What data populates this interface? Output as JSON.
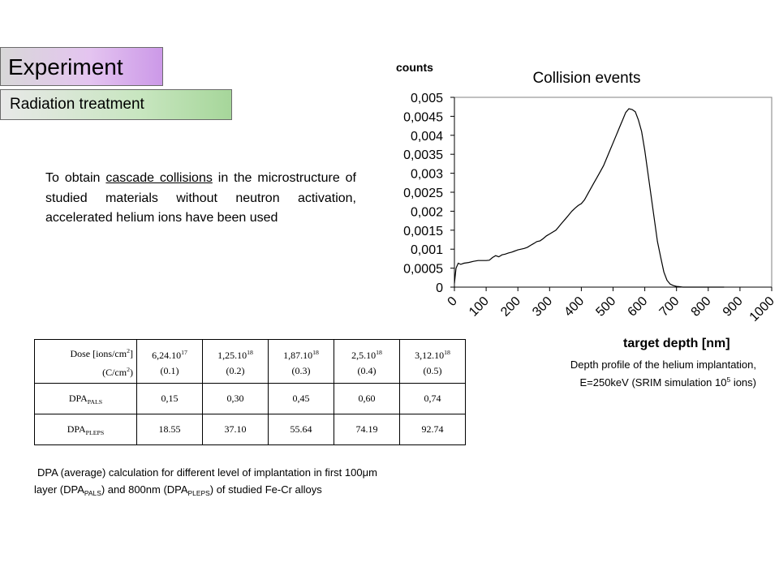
{
  "header": {
    "title": "Experiment",
    "subtitle": "Radiation treatment"
  },
  "intro": {
    "before": "To obtain ",
    "underlined": "cascade collisions",
    "after": " in the microstructure of studied materials without neutron activation, accelerated helium ions have been used"
  },
  "table": {
    "header_label_line1": "Dose [ions/cm",
    "header_label_sup1": "2",
    "header_label_line1_end": "]",
    "header_label_line2": "(C/cm",
    "header_label_sup2": "2",
    "header_label_line2_end": ")",
    "doses": [
      {
        "mantissa": "6,24.10",
        "exp": "17",
        "dpa": "(0.1)"
      },
      {
        "mantissa": "1,25.10",
        "exp": "18",
        "dpa": "(0.2)"
      },
      {
        "mantissa": "1,87.10",
        "exp": "18",
        "dpa": "(0.3)"
      },
      {
        "mantissa": "2,5.10",
        "exp": "18",
        "dpa": "(0.4)"
      },
      {
        "mantissa": "3,12.10",
        "exp": "18",
        "dpa": "(0.5)"
      }
    ],
    "rows": [
      {
        "label": "DPA",
        "label_sub": "PALS",
        "values": [
          "0,15",
          "0,30",
          "0,45",
          "0,60",
          "0,74"
        ]
      },
      {
        "label": "DPA",
        "label_sub": "PLEPS",
        "values": [
          "18.55",
          "37.10",
          "55.64",
          "74.19",
          "92.74"
        ]
      }
    ]
  },
  "caption_left": {
    "line1_a": "DPA (average) calculation for different level of implantation in first 100",
    "line1_mu": "μ",
    "line1_b": "m",
    "line2_a": "layer (DPA",
    "line2_sub1": "PALS",
    "line2_b": ") and 800nm (DPA",
    "line2_sub2": "PLEPS",
    "line2_c": ") of studied Fe-Cr alloys"
  },
  "caption_right": {
    "line1": "Depth profile of the helium implantation,",
    "line2_a": "E=250keV (SRIM simulation 10",
    "line2_sup": "5",
    "line2_b": " ions)"
  },
  "chart_data": {
    "type": "line",
    "title": "Collision events",
    "ylabel": "counts",
    "xlabel": "target depth [nm]",
    "xlim": [
      0,
      1000
    ],
    "ylim": [
      0,
      0.005
    ],
    "x_ticks": [
      "0",
      "100",
      "200",
      "300",
      "400",
      "500",
      "600",
      "700",
      "800",
      "900",
      "1000"
    ],
    "y_ticks": [
      "0",
      "0,0005",
      "0,001",
      "0,0015",
      "0,002",
      "0,0025",
      "0,003",
      "0,0035",
      "0,004",
      "0,0045",
      "0,005"
    ],
    "grid": false,
    "colors": {
      "line": "#000000",
      "plot_border": "#808080"
    },
    "series": [
      {
        "x": [
          0,
          5,
          12,
          20,
          30,
          45,
          60,
          75,
          90,
          100,
          110,
          120,
          130,
          140,
          150,
          160,
          170,
          180,
          190,
          200,
          210,
          220,
          230,
          240,
          250,
          260,
          270,
          280,
          290,
          300,
          310,
          320,
          330,
          340,
          350,
          360,
          370,
          380,
          390,
          400,
          410,
          420,
          430,
          440,
          450,
          460,
          470,
          480,
          490,
          500,
          510,
          520,
          530,
          540,
          550,
          560,
          570,
          580,
          590,
          600,
          610,
          620,
          630,
          640,
          650,
          660,
          670,
          680,
          690,
          700,
          710,
          720,
          730,
          740,
          750,
          760,
          770,
          780,
          790,
          800,
          810,
          820,
          830,
          840,
          850
        ],
        "y": [
          0.0001,
          0.0005,
          0.00063,
          0.0006,
          0.00063,
          0.00065,
          0.00068,
          0.0007,
          0.0007,
          0.0007,
          0.00071,
          0.00078,
          0.00083,
          0.0008,
          0.00085,
          0.00087,
          0.0009,
          0.00092,
          0.00095,
          0.00098,
          0.001,
          0.00102,
          0.00105,
          0.0011,
          0.00115,
          0.0012,
          0.00122,
          0.00128,
          0.00135,
          0.0014,
          0.00145,
          0.0015,
          0.0016,
          0.0017,
          0.0018,
          0.0019,
          0.002,
          0.00208,
          0.00215,
          0.0022,
          0.0023,
          0.00245,
          0.0026,
          0.00275,
          0.0029,
          0.00305,
          0.0032,
          0.0034,
          0.0036,
          0.0038,
          0.004,
          0.0042,
          0.0044,
          0.0046,
          0.0047,
          0.00468,
          0.00462,
          0.0044,
          0.0041,
          0.0036,
          0.003,
          0.0024,
          0.0018,
          0.0012,
          0.0008,
          0.0004,
          0.00018,
          8e-05,
          4e-05,
          2e-05,
          1e-05,
          0,
          0,
          0,
          0,
          0,
          0,
          0,
          0,
          0,
          0,
          0,
          0,
          0,
          0
        ]
      }
    ]
  }
}
